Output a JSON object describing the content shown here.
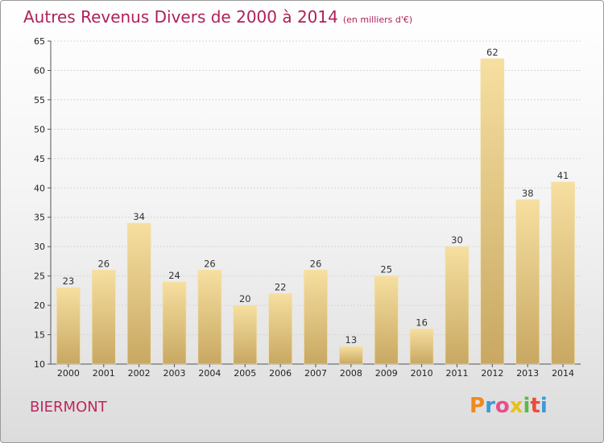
{
  "chart_data": {
    "type": "bar",
    "title": "Autres Revenus Divers de 2000 à 2014",
    "subtitle": "(en milliers d'€)",
    "categories": [
      "2000",
      "2001",
      "2002",
      "2003",
      "2004",
      "2005",
      "2006",
      "2007",
      "2008",
      "2009",
      "2010",
      "2011",
      "2012",
      "2013",
      "2014"
    ],
    "values": [
      23,
      26,
      34,
      24,
      26,
      20,
      22,
      26,
      13,
      25,
      16,
      30,
      62,
      38,
      41
    ],
    "ylim": [
      10,
      65
    ],
    "yticks": [
      10,
      15,
      20,
      25,
      30,
      35,
      40,
      45,
      50,
      55,
      60,
      65
    ],
    "grid": true,
    "colors": {
      "bar_top": "#f6dfa0",
      "bar_bottom": "#c8a862",
      "title": "#b0205a"
    }
  },
  "footer": {
    "commune": "BIERMONT",
    "logo_letters": [
      "P",
      "r",
      "o",
      "x",
      "i",
      "t",
      "i"
    ],
    "logo_colors": [
      "#f08a1c",
      "#3a9ad9",
      "#e94e8a",
      "#e8c21b",
      "#5ab948",
      "#e94e3b",
      "#3a9ad9"
    ]
  }
}
